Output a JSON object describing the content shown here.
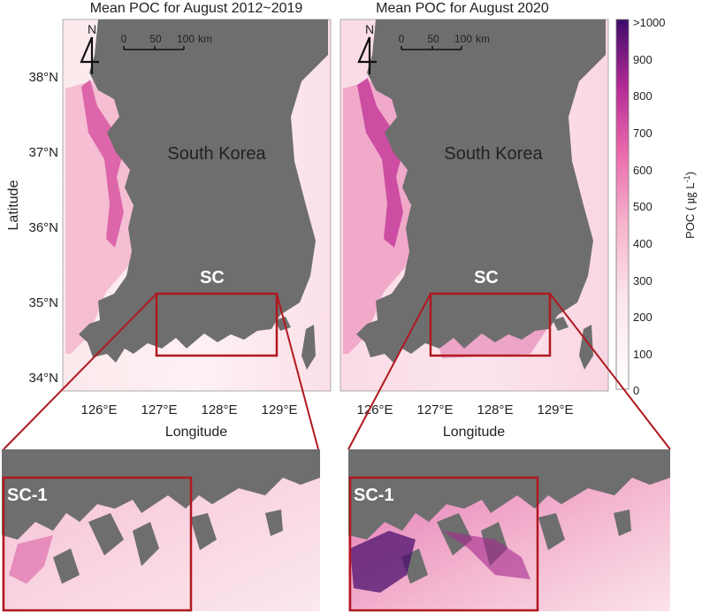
{
  "panels": [
    {
      "title": "Mean POC for August 2012~2019",
      "country_label": "South Korea",
      "region_label": "SC",
      "zoom_label": "SC-1"
    },
    {
      "title": "Mean POC for August 2020",
      "country_label": "South Korea",
      "region_label": "SC",
      "zoom_label": "SC-1"
    }
  ],
  "north_arrow": "N",
  "scale_bar": {
    "ticks": [
      "0",
      "50",
      "100"
    ],
    "unit": "km"
  },
  "y_axis": {
    "label": "Latitude",
    "ticks": [
      "38°N",
      "37°N",
      "36°N",
      "35°N",
      "34°N"
    ]
  },
  "x_axis": {
    "label": "Longitude",
    "ticks": [
      "126°E",
      "127°E",
      "128°E",
      "129°E"
    ]
  },
  "colorbar": {
    "label": "POC ( ㎍ L",
    "label_sup": "-1",
    "label_close": ")",
    "ticks": [
      ">1000",
      "900",
      "800",
      "700",
      "600",
      "500",
      "400",
      "300",
      "200",
      "100",
      "0"
    ]
  },
  "colors": {
    "land": "#6e6e6e",
    "ocean_low": "#fbe8ea",
    "ocean_mid": "#f4a7c6",
    "coast_high": "#d94aa0",
    "extreme": "#4b0f6e",
    "highlight_box": "#b0191f"
  }
}
